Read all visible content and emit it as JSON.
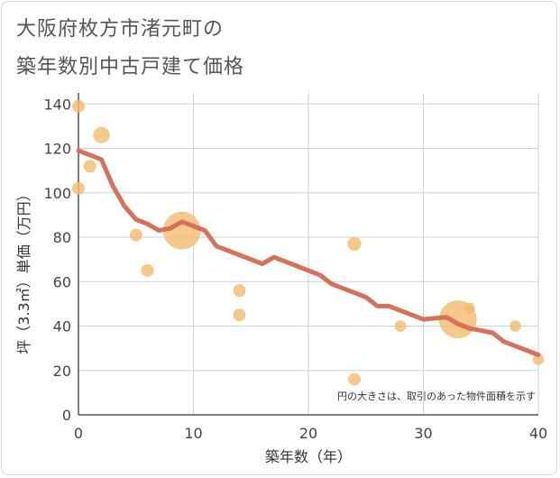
{
  "header": {
    "title_line1": "大阪府枚方市渚元町の",
    "title_line2": "築年数別中古戸建て価格"
  },
  "chart_data": {
    "type": "scatter",
    "title": "大阪府枚方市渚元町の築年数別中古戸建て価格",
    "xlabel": "築年数（年）",
    "ylabel": "坪（3.3㎡）単価（万円）",
    "xlim": [
      0,
      40
    ],
    "ylim": [
      0,
      145
    ],
    "xticks": [
      0,
      10,
      20,
      30,
      40
    ],
    "yticks": [
      0,
      20,
      40,
      60,
      80,
      100,
      120,
      140
    ],
    "grid": true,
    "note": "円の大きさは、取引のあった物件面積を示す",
    "colors": {
      "bubble": "#f2bc6e",
      "line": "#d9705a",
      "grid": "#c9d3dd"
    },
    "points": [
      {
        "x": 0,
        "y": 139,
        "size": 1.0
      },
      {
        "x": 0,
        "y": 102,
        "size": 1.0
      },
      {
        "x": 1,
        "y": 112,
        "size": 1.0
      },
      {
        "x": 2,
        "y": 126,
        "size": 1.3
      },
      {
        "x": 5,
        "y": 81,
        "size": 1.0
      },
      {
        "x": 6,
        "y": 65,
        "size": 1.0
      },
      {
        "x": 9,
        "y": 83,
        "size": 3.0
      },
      {
        "x": 14,
        "y": 56,
        "size": 1.0
      },
      {
        "x": 14,
        "y": 45,
        "size": 1.0
      },
      {
        "x": 24,
        "y": 77,
        "size": 1.1
      },
      {
        "x": 24,
        "y": 16,
        "size": 1.0
      },
      {
        "x": 28,
        "y": 40,
        "size": 0.9
      },
      {
        "x": 33,
        "y": 43,
        "size": 3.0
      },
      {
        "x": 34,
        "y": 48,
        "size": 0.9
      },
      {
        "x": 38,
        "y": 40,
        "size": 0.9
      },
      {
        "x": 40,
        "y": 25,
        "size": 0.9
      }
    ],
    "trend": {
      "name": "trend",
      "x": [
        0,
        1,
        2,
        3,
        4,
        5,
        6,
        7,
        8,
        9,
        10,
        11,
        12,
        13,
        14,
        15,
        16,
        17,
        18,
        19,
        20,
        21,
        22,
        23,
        24,
        25,
        26,
        27,
        28,
        29,
        30,
        31,
        32,
        33,
        34,
        35,
        36,
        37,
        38,
        39,
        40
      ],
      "y": [
        119,
        117,
        115,
        103,
        94,
        88,
        86,
        83,
        84,
        87,
        85,
        83,
        76,
        74,
        72,
        70,
        68,
        71,
        69,
        67,
        65,
        63,
        59,
        57,
        55,
        53,
        49,
        49,
        47,
        45,
        43,
        43.5,
        44,
        41,
        39,
        38,
        37,
        33,
        31,
        29,
        27
      ]
    }
  }
}
